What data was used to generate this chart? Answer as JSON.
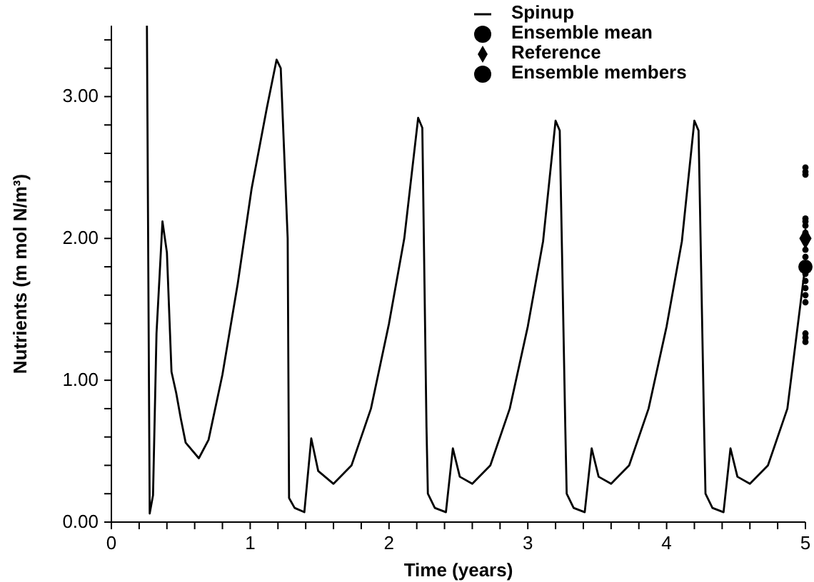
{
  "chart_data": {
    "type": "line",
    "xlabel": "Time (years)",
    "ylabel": "Nutrients (m mol N/m³)",
    "xlim": [
      0,
      5
    ],
    "xticks": [
      0,
      {
        "value": 0.2,
        "label": null
      },
      {
        "value": 0.4,
        "label": null
      },
      {
        "value": 0.6,
        "label": null
      },
      {
        "value": 0.8,
        "label": null
      },
      1,
      {
        "value": 1.2,
        "label": null
      },
      {
        "value": 1.4,
        "label": null
      },
      {
        "value": 1.6,
        "label": null
      },
      {
        "value": 1.8,
        "label": null
      },
      2,
      {
        "value": 2.2,
        "label": null
      },
      {
        "value": 2.4,
        "label": null
      },
      {
        "value": 2.6,
        "label": null
      },
      {
        "value": 2.8,
        "label": null
      },
      3,
      {
        "value": 3.2,
        "label": null
      },
      {
        "value": 3.4,
        "label": null
      },
      {
        "value": 3.6,
        "label": null
      },
      {
        "value": 3.8,
        "label": null
      },
      4,
      {
        "value": 4.2,
        "label": null
      },
      {
        "value": 4.4,
        "label": null
      },
      {
        "value": 4.6,
        "label": null
      },
      {
        "value": 4.8,
        "label": null
      },
      5
    ],
    "ylim": [
      0,
      3.5
    ],
    "yticks": [
      {
        "value": 0,
        "label": "0.00"
      },
      {
        "value": 0.2,
        "label": null
      },
      {
        "value": 0.4,
        "label": null
      },
      {
        "value": 0.6,
        "label": null
      },
      {
        "value": 0.8,
        "label": null
      },
      {
        "value": 1,
        "label": "1.00"
      },
      {
        "value": 1.2,
        "label": null
      },
      {
        "value": 1.4,
        "label": null
      },
      {
        "value": 1.6,
        "label": null
      },
      {
        "value": 1.8,
        "label": null
      },
      {
        "value": 2,
        "label": "2.00"
      },
      {
        "value": 2.2,
        "label": null
      },
      {
        "value": 2.4,
        "label": null
      },
      {
        "value": 2.6,
        "label": null
      },
      {
        "value": 2.8,
        "label": null
      },
      {
        "value": 3,
        "label": "3.00"
      },
      {
        "value": 3.2,
        "label": null
      },
      {
        "value": 3.4,
        "label": null
      }
    ],
    "grid": false,
    "legend": "top right",
    "series": [
      {
        "name": "Spinup",
        "color": "#000000",
        "marker": "none",
        "x": [
          0.256,
          0.276,
          0.3,
          0.325,
          0.368,
          0.4,
          0.433,
          0.467,
          0.5,
          0.535,
          0.63,
          0.7,
          0.8,
          0.91,
          1.01,
          1.12,
          1.19,
          1.22,
          1.27,
          1.28,
          1.32,
          1.39,
          1.44,
          1.49,
          1.6,
          1.73,
          1.87,
          2.0,
          2.11,
          2.21,
          2.24,
          2.27,
          2.28,
          2.33,
          2.41,
          2.46,
          2.51,
          2.6,
          2.73,
          2.87,
          3.0,
          3.11,
          3.2,
          3.23,
          3.27,
          3.28,
          3.33,
          3.41,
          3.46,
          3.51,
          3.6,
          3.73,
          3.87,
          4.0,
          4.11,
          4.2,
          4.23,
          4.27,
          4.28,
          4.33,
          4.41,
          4.46,
          4.51,
          4.6,
          4.73,
          4.87,
          5.0
        ],
        "values": [
          3.5,
          0.06,
          0.19,
          1.33,
          2.12,
          1.9,
          1.06,
          0.91,
          0.73,
          0.56,
          0.45,
          0.58,
          1.04,
          1.68,
          2.35,
          2.92,
          3.26,
          3.2,
          2.0,
          0.17,
          0.1,
          0.07,
          0.59,
          0.36,
          0.27,
          0.4,
          0.8,
          1.4,
          2.0,
          2.85,
          2.78,
          0.67,
          0.2,
          0.1,
          0.07,
          0.52,
          0.32,
          0.27,
          0.4,
          0.8,
          1.38,
          1.98,
          2.83,
          2.76,
          0.67,
          0.2,
          0.1,
          0.07,
          0.52,
          0.32,
          0.27,
          0.4,
          0.8,
          1.38,
          1.98,
          2.83,
          2.76,
          0.67,
          0.2,
          0.1,
          0.07,
          0.52,
          0.32,
          0.27,
          0.4,
          0.8,
          1.82
        ]
      },
      {
        "name": "Ensemble mean",
        "type": "scatter",
        "color": "#000000",
        "marker": "circle",
        "x": [
          5
        ],
        "values": [
          1.8
        ]
      },
      {
        "name": "Reference",
        "type": "scatter",
        "color": "#000000",
        "marker": "diamond",
        "x": [
          5
        ],
        "values": [
          2.0
        ]
      },
      {
        "name": "Ensemble members",
        "type": "scatter",
        "color": "#000000",
        "marker": "circle",
        "x": [
          5,
          5,
          5,
          5,
          5,
          5,
          5,
          5,
          5,
          5,
          5,
          5,
          5,
          5,
          5,
          5,
          5,
          5
        ],
        "values": [
          2.5,
          2.47,
          2.45,
          2.14,
          2.12,
          2.09,
          2.04,
          1.97,
          1.92,
          1.87,
          1.75,
          1.7,
          1.65,
          1.6,
          1.55,
          1.33,
          1.3,
          1.27
        ]
      }
    ]
  }
}
